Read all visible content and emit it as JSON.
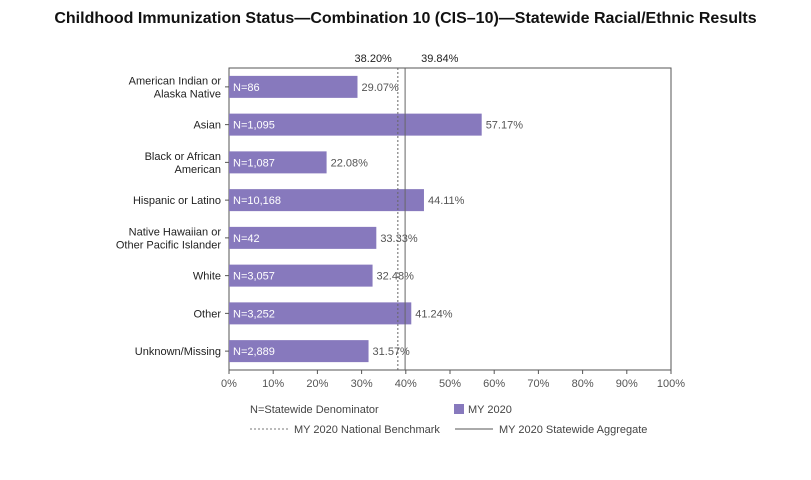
{
  "chart_data": {
    "type": "bar",
    "orientation": "horizontal",
    "title": "Childhood Immunization Status—Combination 10 (CIS–10)—Statewide Racial/Ethnic Results",
    "categories": [
      [
        "American Indian or",
        "Alaska Native"
      ],
      [
        "Asian"
      ],
      [
        "Black or African",
        "American"
      ],
      [
        "Hispanic or Latino"
      ],
      [
        "Native Hawaiian or",
        "Other Pacific Islander"
      ],
      [
        "White"
      ],
      [
        "Other"
      ],
      [
        "Unknown/Missing"
      ]
    ],
    "values": [
      29.07,
      57.17,
      22.08,
      44.11,
      33.33,
      32.48,
      41.24,
      31.57
    ],
    "value_labels": [
      "29.07%",
      "57.17%",
      "22.08%",
      "44.11%",
      "33.33%",
      "32.48%",
      "41.24%",
      "31.57%"
    ],
    "denominators": [
      "N=86",
      "N=1,095",
      "N=1,087",
      "N=10,168",
      "N=42",
      "N=3,057",
      "N=3,252",
      "N=2,889"
    ],
    "xlim": [
      0,
      100
    ],
    "xticks": [
      0,
      10,
      20,
      30,
      40,
      50,
      60,
      70,
      80,
      90,
      100
    ],
    "xtick_labels": [
      "0%",
      "10%",
      "20%",
      "30%",
      "40%",
      "50%",
      "60%",
      "70%",
      "80%",
      "90%",
      "100%"
    ],
    "reference_lines": [
      {
        "name": "MY 2020 National Benchmark",
        "value": 38.2,
        "label": "38.20%",
        "style": "dotted"
      },
      {
        "name": "MY 2020 Statewide Aggregate",
        "value": 39.84,
        "label": "39.84%",
        "style": "solid"
      }
    ],
    "series": [
      {
        "name": "MY 2020",
        "color": "#8779bd"
      }
    ],
    "legend": {
      "placement": "bottom",
      "items": [
        "N=Statewide Denominator",
        "MY 2020",
        "MY 2020 National Benchmark",
        "MY 2020 Statewide Aggregate"
      ]
    },
    "grid": false
  }
}
